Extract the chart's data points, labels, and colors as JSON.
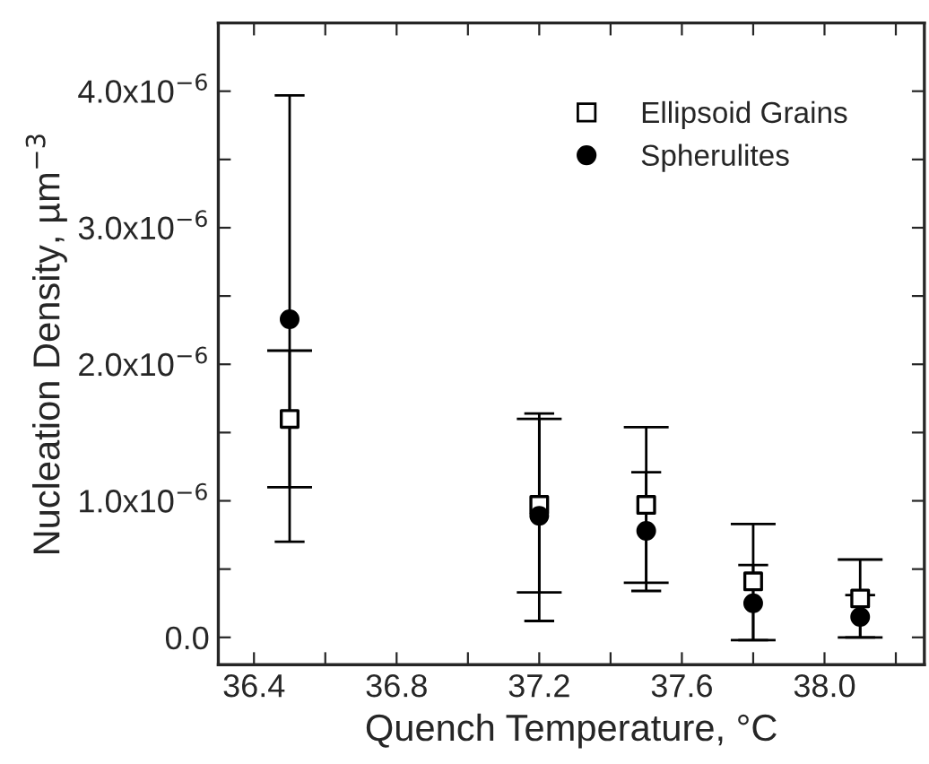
{
  "chart_data": {
    "type": "scatter",
    "xlabel": "Quench Temperature, °C",
    "ylabel": "Nucleation Density, µm$^{−3}$",
    "x": [
      36.5,
      37.2,
      37.5,
      37.8,
      38.1
    ],
    "series": [
      {
        "name": "Ellipsoid Grains",
        "color": "#000000",
        "marker": "square",
        "values": [
          1.6e-06,
          9.7e-07,
          9.7e-07,
          4.1e-07,
          2.85e-07
        ],
        "errors": [
          [
            1.1e-06,
            2.1e-06
          ],
          [
            3.3e-07,
            1.6e-06
          ],
          [
            4e-07,
            1.54e-06
          ],
          [
            -2e-08,
            8.3e-07
          ],
          [
            0.0,
            5.7e-07
          ]
        ]
      },
      {
        "name": "Spherulites",
        "color": "#000000",
        "marker": "circle",
        "values": [
          2.33e-06,
          8.9e-07,
          7.8e-07,
          2.5e-07,
          1.5e-07
        ],
        "errors": [
          [
            7e-07,
            3.97e-06
          ],
          [
            1.2e-07,
            1.64e-06
          ],
          [
            3.4e-07,
            1.21e-06
          ],
          [
            -2e-08,
            5.3e-07
          ],
          [
            0.0,
            3.1e-07
          ]
        ]
      }
    ],
    "xlim": [
      36.3,
      38.28
    ],
    "ylim": [
      -2e-07,
      4.5e-06
    ],
    "xticks": [
      36.4,
      {
        "value": 36.6,
        "label": null
      },
      36.8,
      {
        "value": 37.0,
        "label": null
      },
      37.2,
      {
        "value": 37.4,
        "label": null
      },
      37.6,
      {
        "value": 37.8,
        "label": null
      },
      {
        "value": 38.0,
        "label": "38.0"
      },
      {
        "value": 38.2,
        "label": null
      }
    ],
    "yticks": [
      {
        "value": 0.0,
        "label": "0.0"
      },
      {
        "value": 5e-07,
        "label": null
      },
      {
        "value": 1e-06,
        "label": "1.0x10$^{−6}$"
      },
      {
        "value": 1.5e-06,
        "label": null
      },
      {
        "value": 2e-06,
        "label": "2.0x10$^{−6}$"
      },
      {
        "value": 2.5e-06,
        "label": null
      },
      {
        "value": 3e-06,
        "label": "3.0x10$^{−6}$"
      },
      {
        "value": 3.5e-06,
        "label": null
      },
      {
        "value": 4e-06,
        "label": "4.0x10$^{−6}$"
      }
    ],
    "legend": "top right",
    "grid": false
  }
}
